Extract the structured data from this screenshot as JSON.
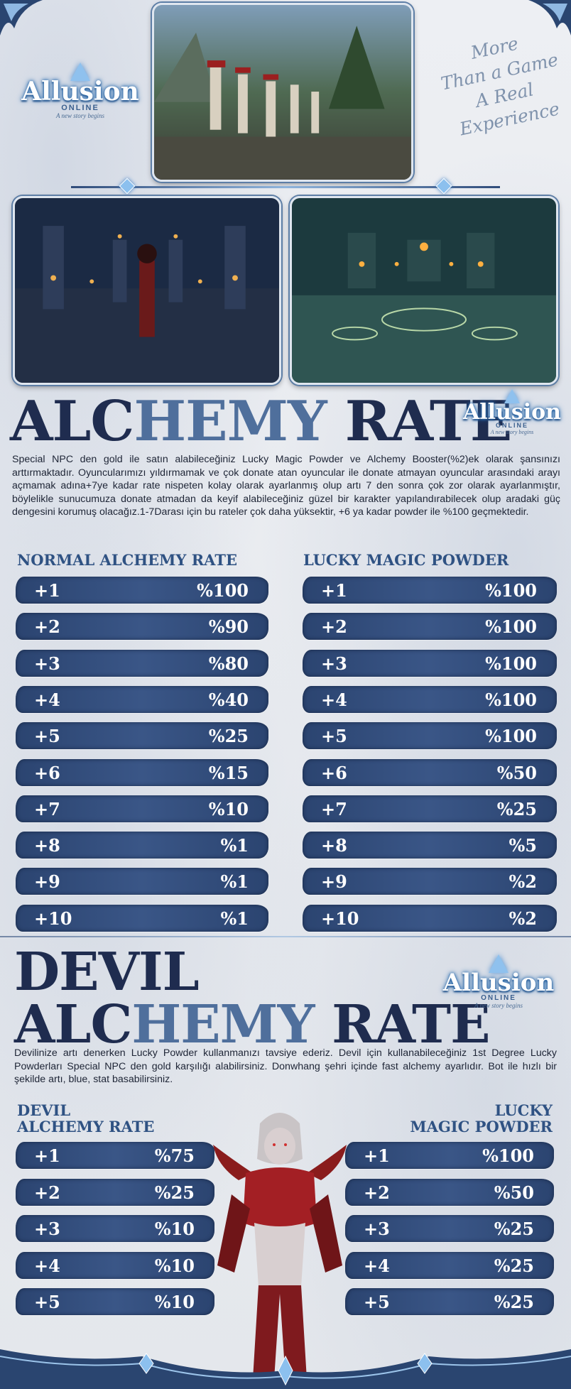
{
  "brand": {
    "logo_word": "Allusion",
    "logo_sub": "ONLINE",
    "logo_tag": "A new story begins"
  },
  "slogan": [
    "More",
    "Than a Game",
    "A Real",
    "Experience"
  ],
  "alchemy": {
    "title_dark_1": "ALC",
    "title_light": "HEMY",
    "title_dark_2": " RATE",
    "paragraph": "Special NPC den gold ile satın alabileceğiniz Lucky Magic Powder ve Alchemy Booster(%2)ek olarak şansınızı arttırmaktadır. Oyuncularımızı yıldırmamak ve çok donate atan oyuncular ile donate atmayan oyuncular arasındaki arayı açmamak adına+7ye kadar rate nispeten kolay olarak ayarlanmış olup artı 7 den sonra çok zor olarak ayarlanmıştır, böylelikle sunucumuza donate atmadan da keyif alabileceğiniz güzel bir karakter yapılandırabilecek olup aradaki güç dengesini korumuş olacağız.1-7Darası için bu rateler çok daha yüksektir, +6 ya kadar powder ile %100 geçmektedir.",
    "normal_header": "NORMAL ALCHEMY RATE",
    "lucky_header": "LUCKY MAGIC POWDER",
    "normal_rows": [
      {
        "level": "+1",
        "rate": "%100"
      },
      {
        "level": "+2",
        "rate": "%90"
      },
      {
        "level": "+3",
        "rate": "%80"
      },
      {
        "level": "+4",
        "rate": "%40"
      },
      {
        "level": "+5",
        "rate": "%25"
      },
      {
        "level": "+6",
        "rate": "%15"
      },
      {
        "level": "+7",
        "rate": "%10"
      },
      {
        "level": "+8",
        "rate": "%1"
      },
      {
        "level": "+9",
        "rate": "%1"
      },
      {
        "level": "+10",
        "rate": "%1"
      }
    ],
    "lucky_rows": [
      {
        "level": "+1",
        "rate": "%100"
      },
      {
        "level": "+2",
        "rate": "%100"
      },
      {
        "level": "+3",
        "rate": "%100"
      },
      {
        "level": "+4",
        "rate": "%100"
      },
      {
        "level": "+5",
        "rate": "%100"
      },
      {
        "level": "+6",
        "rate": "%50"
      },
      {
        "level": "+7",
        "rate": "%25"
      },
      {
        "level": "+8",
        "rate": "%5"
      },
      {
        "level": "+9",
        "rate": "%2"
      },
      {
        "level": "+10",
        "rate": "%2"
      }
    ]
  },
  "devil": {
    "title_line1": "DEVIL",
    "title_dark_1": "ALC",
    "title_light": "HEMY",
    "title_dark_2": " RATE",
    "paragraph": "Devilinize artı denerken Lucky Powder kullanmanızı tavsiye ederiz. Devil için kullanabileceğiniz 1st Degree Lucky Powderları Special NPC den gold karşılığı alabilirsiniz. Donwhang şehri içinde fast alchemy ayarlıdır. Bot ile hızlı bir şekilde artı, blue, stat basabilirsiniz.",
    "left_header_1": "DEVIL",
    "left_header_2": "ALCHEMY RATE",
    "right_header_1": "LUCKY",
    "right_header_2": "MAGIC POWDER",
    "devil_rows": [
      {
        "level": "+1",
        "rate": "%75"
      },
      {
        "level": "+2",
        "rate": "%25"
      },
      {
        "level": "+3",
        "rate": "%10"
      },
      {
        "level": "+4",
        "rate": "%10"
      },
      {
        "level": "+5",
        "rate": "%10"
      }
    ],
    "lucky_rows": [
      {
        "level": "+1",
        "rate": "%100"
      },
      {
        "level": "+2",
        "rate": "%50"
      },
      {
        "level": "+3",
        "rate": "%25"
      },
      {
        "level": "+4",
        "rate": "%25"
      },
      {
        "level": "+5",
        "rate": "%25"
      }
    ]
  },
  "colors": {
    "dark_navy": "#1f2c4f",
    "light_blue": "#4f6f9c",
    "row_bg": "#2b4470"
  }
}
